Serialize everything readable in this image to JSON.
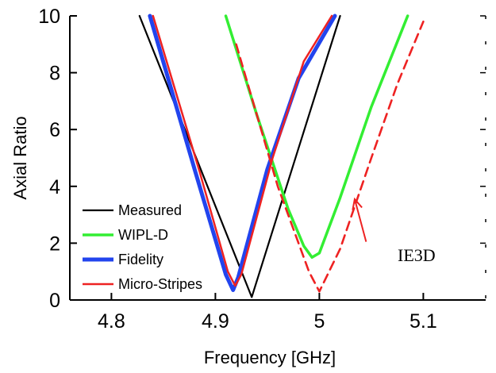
{
  "chart_data": {
    "type": "line",
    "xlabel": "Frequency   [GHz]",
    "ylabel": "Axial Ratio",
    "xlim": [
      4.76,
      5.16
    ],
    "ylim": [
      0,
      10
    ],
    "x_ticks": [
      4.8,
      4.9,
      5,
      5.1
    ],
    "x_tick_labels": [
      "4.8",
      "4.9",
      "5",
      "5.1"
    ],
    "y_ticks": [
      0,
      2,
      4,
      6,
      8,
      10
    ],
    "y_tick_labels": [
      "0",
      "2",
      "4",
      "6",
      "8",
      "10"
    ],
    "grid": false,
    "legend_position": "bottom-left",
    "series": [
      {
        "name": "Measured",
        "color": "#000000",
        "style": "solid",
        "points": [
          [
            4.827,
            10
          ],
          [
            4.935,
            0.1
          ],
          [
            5.02,
            10
          ]
        ]
      },
      {
        "name": "WIPL-D",
        "color": "#33ee33",
        "style": "solid",
        "points": [
          [
            4.91,
            10
          ],
          [
            4.94,
            6.5
          ],
          [
            4.97,
            3.2
          ],
          [
            4.985,
            1.9
          ],
          [
            4.993,
            1.5
          ],
          [
            5.0,
            1.65
          ],
          [
            5.02,
            3.6
          ],
          [
            5.05,
            6.8
          ],
          [
            5.085,
            10
          ]
        ]
      },
      {
        "name": "Fidelity",
        "color": "#2244ee",
        "style": "solid",
        "points": [
          [
            4.837,
            10
          ],
          [
            4.88,
            4.6
          ],
          [
            4.91,
            0.9
          ],
          [
            4.917,
            0.35
          ],
          [
            4.922,
            0.8
          ],
          [
            4.95,
            4.6
          ],
          [
            4.98,
            7.8
          ],
          [
            5.015,
            10
          ]
        ]
      },
      {
        "name": "Micro-Stripes",
        "color": "#ee2222",
        "style": "solid",
        "points": [
          [
            4.84,
            10
          ],
          [
            4.885,
            4.5
          ],
          [
            4.912,
            1.0
          ],
          [
            4.919,
            0.5
          ],
          [
            4.925,
            0.9
          ],
          [
            4.955,
            5.0
          ],
          [
            4.985,
            8.4
          ],
          [
            5.012,
            10
          ]
        ]
      },
      {
        "name": "IE3D",
        "color": "#ee2222",
        "style": "dashed",
        "points": [
          [
            4.92,
            9.0
          ],
          [
            4.96,
            4.0
          ],
          [
            4.99,
            1.0
          ],
          [
            5.0,
            0.3
          ],
          [
            5.02,
            1.8
          ],
          [
            5.05,
            5.0
          ],
          [
            5.075,
            7.6
          ],
          [
            5.1,
            9.8
          ]
        ]
      }
    ],
    "annotation": {
      "text": "IE3D",
      "arrow_from": [
        5.045,
        2.05
      ],
      "arrow_to": [
        5.034,
        3.55
      ]
    }
  }
}
